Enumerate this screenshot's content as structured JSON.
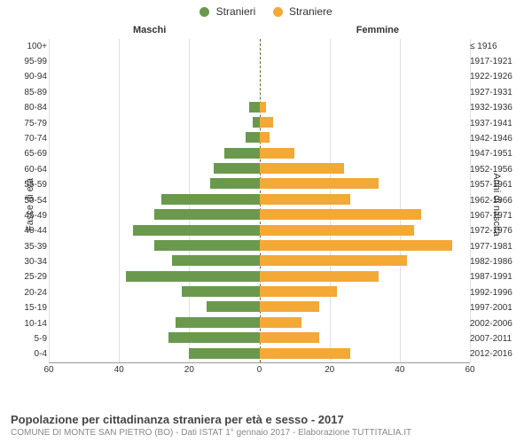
{
  "legend": {
    "male": {
      "label": "Stranieri",
      "color": "#6a994e"
    },
    "female": {
      "label": "Straniere",
      "color": "#f4a836"
    }
  },
  "headers": {
    "left": "Maschi",
    "right": "Femmine"
  },
  "y_axis_titles": {
    "left": "Fasce di età",
    "right": "Anni di nascita"
  },
  "caption": {
    "title": "Popolazione per cittadinanza straniera per età e sesso - 2017",
    "sub": "COMUNE DI MONTE SAN PIETRO (BO) - Dati ISTAT 1° gennaio 2017 - Elaborazione TUTTITALIA.IT"
  },
  "chart": {
    "type": "population-pyramid",
    "xlim": 60,
    "xtick_step": 20,
    "xticks_left": [
      60,
      40,
      20,
      0
    ],
    "xticks_right": [
      0,
      20,
      40,
      60
    ],
    "grid_color": "#e0e0e0",
    "center_line_color": "#666633",
    "background_color": "#ffffff",
    "label_fontsize": 10,
    "bar_colors": {
      "male": "#6a994e",
      "female": "#f4a836"
    },
    "rows": [
      {
        "age": "100+",
        "year": "≤ 1916",
        "male": 0,
        "female": 0
      },
      {
        "age": "95-99",
        "year": "1917-1921",
        "male": 0,
        "female": 0
      },
      {
        "age": "90-94",
        "year": "1922-1926",
        "male": 0,
        "female": 0
      },
      {
        "age": "85-89",
        "year": "1927-1931",
        "male": 0,
        "female": 0
      },
      {
        "age": "80-84",
        "year": "1932-1936",
        "male": 3,
        "female": 2
      },
      {
        "age": "75-79",
        "year": "1937-1941",
        "male": 2,
        "female": 4
      },
      {
        "age": "70-74",
        "year": "1942-1946",
        "male": 4,
        "female": 3
      },
      {
        "age": "65-69",
        "year": "1947-1951",
        "male": 10,
        "female": 10
      },
      {
        "age": "60-64",
        "year": "1952-1956",
        "male": 13,
        "female": 24
      },
      {
        "age": "55-59",
        "year": "1957-1961",
        "male": 14,
        "female": 34
      },
      {
        "age": "50-54",
        "year": "1962-1966",
        "male": 28,
        "female": 26
      },
      {
        "age": "45-49",
        "year": "1967-1971",
        "male": 30,
        "female": 46
      },
      {
        "age": "40-44",
        "year": "1972-1976",
        "male": 36,
        "female": 44
      },
      {
        "age": "35-39",
        "year": "1977-1981",
        "male": 30,
        "female": 55
      },
      {
        "age": "30-34",
        "year": "1982-1986",
        "male": 25,
        "female": 42
      },
      {
        "age": "25-29",
        "year": "1987-1991",
        "male": 38,
        "female": 34
      },
      {
        "age": "20-24",
        "year": "1992-1996",
        "male": 22,
        "female": 22
      },
      {
        "age": "15-19",
        "year": "1997-2001",
        "male": 15,
        "female": 17
      },
      {
        "age": "10-14",
        "year": "2002-2006",
        "male": 24,
        "female": 12
      },
      {
        "age": "5-9",
        "year": "2007-2011",
        "male": 26,
        "female": 17
      },
      {
        "age": "0-4",
        "year": "2012-2016",
        "male": 20,
        "female": 26
      }
    ]
  }
}
